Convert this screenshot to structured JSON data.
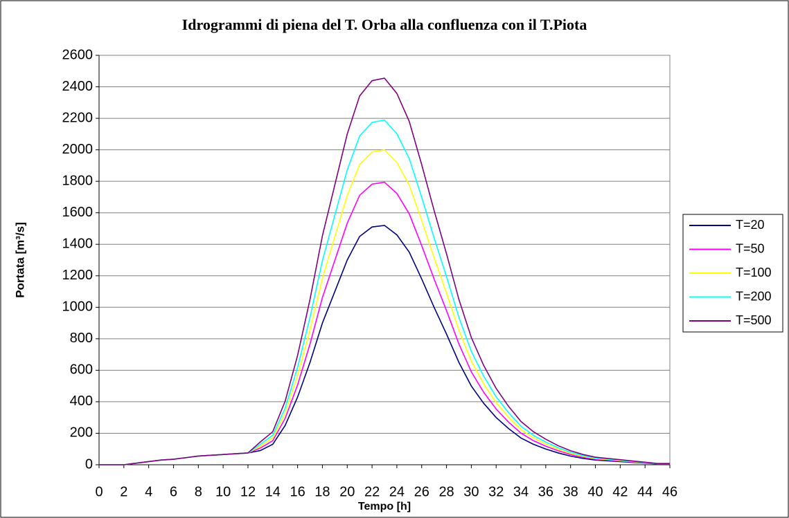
{
  "chart_data": {
    "type": "line",
    "title": "Idrogrammi di piena del T. Orba alla confluenza con il T.Piota",
    "x_label": "Tempo [h]",
    "y_label": "Portata [m³/s]",
    "x": [
      0,
      1,
      2,
      3,
      4,
      5,
      6,
      7,
      8,
      9,
      10,
      11,
      12,
      13,
      14,
      15,
      16,
      17,
      18,
      19,
      20,
      21,
      22,
      23,
      24,
      25,
      26,
      27,
      28,
      29,
      30,
      31,
      32,
      33,
      34,
      35,
      36,
      37,
      38,
      39,
      40,
      41,
      42,
      43,
      44,
      45,
      46
    ],
    "series": [
      {
        "name": "T=20",
        "color": "#000080",
        "values": [
          0,
          0,
          0,
          10,
          20,
          30,
          35,
          45,
          55,
          60,
          65,
          70,
          75,
          90,
          130,
          250,
          430,
          650,
          900,
          1100,
          1300,
          1450,
          1510,
          1520,
          1460,
          1350,
          1180,
          1000,
          830,
          650,
          500,
          390,
          300,
          230,
          170,
          130,
          100,
          75,
          55,
          40,
          30,
          25,
          20,
          15,
          10,
          5,
          5
        ]
      },
      {
        "name": "T=50",
        "color": "#ff00ff",
        "values": [
          0,
          0,
          0,
          10,
          20,
          30,
          35,
          45,
          55,
          60,
          65,
          70,
          75,
          106,
          153,
          295,
          507,
          767,
          1062,
          1298,
          1534,
          1711,
          1782,
          1794,
          1723,
          1593,
          1392,
          1180,
          979,
          767,
          590,
          460,
          354,
          271,
          201,
          153,
          118,
          89,
          65,
          47,
          35,
          30,
          24,
          18,
          12,
          6,
          6
        ]
      },
      {
        "name": "T=100",
        "color": "#ffff00",
        "values": [
          0,
          0,
          0,
          10,
          20,
          30,
          35,
          45,
          55,
          60,
          65,
          70,
          75,
          118,
          171,
          329,
          565,
          855,
          1184,
          1447,
          1710,
          1907,
          1986,
          1999,
          1920,
          1775,
          1552,
          1315,
          1091,
          855,
          658,
          513,
          395,
          302,
          224,
          171,
          132,
          99,
          72,
          53,
          39,
          33,
          26,
          20,
          13,
          7,
          7
        ]
      },
      {
        "name": "T=200",
        "color": "#00ffff",
        "values": [
          0,
          0,
          0,
          10,
          20,
          30,
          35,
          45,
          55,
          60,
          65,
          70,
          75,
          130,
          187,
          360,
          619,
          936,
          1296,
          1584,
          1872,
          2088,
          2174,
          2189,
          2102,
          1944,
          1699,
          1440,
          1195,
          936,
          720,
          562,
          432,
          331,
          245,
          187,
          144,
          108,
          79,
          58,
          43,
          36,
          29,
          22,
          14,
          7,
          7
        ]
      },
      {
        "name": "T=500",
        "color": "#800080",
        "values": [
          0,
          0,
          0,
          10,
          20,
          30,
          35,
          45,
          55,
          60,
          65,
          70,
          75,
          145,
          210,
          404,
          694,
          1050,
          1454,
          1777,
          2100,
          2342,
          2439,
          2455,
          2358,
          2180,
          1906,
          1615,
          1340,
          1050,
          808,
          630,
          485,
          371,
          275,
          210,
          162,
          121,
          89,
          65,
          48,
          40,
          32,
          24,
          16,
          8,
          8
        ]
      }
    ],
    "xlim": [
      0,
      46
    ],
    "xticks": [
      0,
      2,
      4,
      6,
      8,
      10,
      12,
      14,
      16,
      18,
      20,
      22,
      24,
      26,
      28,
      30,
      32,
      34,
      36,
      38,
      40,
      42,
      44,
      46
    ],
    "ylim": [
      0,
      2600
    ],
    "yticks": [
      0,
      200,
      400,
      600,
      800,
      1000,
      1200,
      1400,
      1600,
      1800,
      2000,
      2200,
      2400,
      2600
    ],
    "grid": true,
    "legend": "right"
  }
}
